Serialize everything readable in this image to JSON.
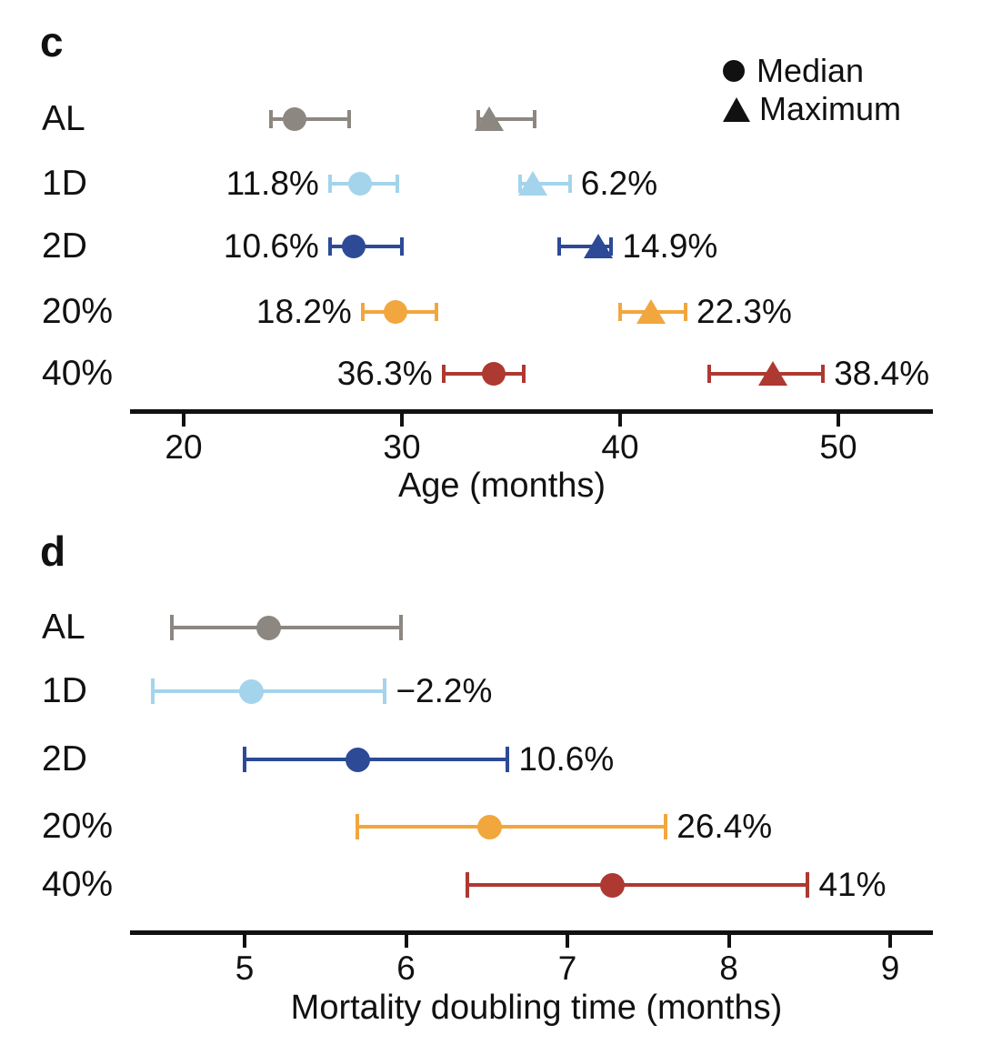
{
  "legend": {
    "items": [
      {
        "marker": "circle",
        "label": "Median"
      },
      {
        "marker": "triangle",
        "label": "Maximum"
      }
    ]
  },
  "chart_data": [
    {
      "type": "scatter",
      "panel_letter": "c",
      "xlabel": "Age (months)",
      "xlim": [
        17.5,
        54.6
      ],
      "xticks": [
        20,
        30,
        40,
        50
      ],
      "grid": false,
      "legend_position": "top-right",
      "groups": [
        "AL",
        "1D",
        "2D",
        "20%",
        "40%"
      ],
      "colors": {
        "AL": "#8C8781",
        "1D": "#A3D4EB",
        "2D": "#2C4A96",
        "20%": "#F1A73E",
        "40%": "#AE3931"
      },
      "series": [
        {
          "name": "Median",
          "marker": "circle",
          "points": [
            {
              "group": "AL",
              "x": 25.1,
              "lo": 24.0,
              "hi": 27.6,
              "label": "",
              "label_side": ""
            },
            {
              "group": "1D",
              "x": 28.1,
              "lo": 26.7,
              "hi": 29.8,
              "label": "11.8%",
              "label_side": "left"
            },
            {
              "group": "2D",
              "x": 27.8,
              "lo": 26.7,
              "hi": 30.0,
              "label": "10.6%",
              "label_side": "left"
            },
            {
              "group": "20%",
              "x": 29.7,
              "lo": 28.2,
              "hi": 31.6,
              "label": "18.2%",
              "label_side": "left"
            },
            {
              "group": "40%",
              "x": 34.2,
              "lo": 31.9,
              "hi": 35.6,
              "label": "36.3%",
              "label_side": "left"
            }
          ]
        },
        {
          "name": "Maximum",
          "marker": "triangle",
          "points": [
            {
              "group": "AL",
              "x": 34.0,
              "lo": 33.5,
              "hi": 36.1,
              "label": "",
              "label_side": ""
            },
            {
              "group": "1D",
              "x": 36.0,
              "lo": 35.4,
              "hi": 37.7,
              "label": "6.2%",
              "label_side": "right"
            },
            {
              "group": "2D",
              "x": 39.0,
              "lo": 37.2,
              "hi": 39.6,
              "label": "14.9%",
              "label_side": "right"
            },
            {
              "group": "20%",
              "x": 41.4,
              "lo": 40.0,
              "hi": 43.0,
              "label": "22.3%",
              "label_side": "right"
            },
            {
              "group": "40%",
              "x": 47.0,
              "lo": 44.1,
              "hi": 49.3,
              "label": "38.4%",
              "label_side": "right"
            }
          ]
        }
      ]
    },
    {
      "type": "scatter",
      "panel_letter": "d",
      "xlabel": "Mortality doubling time (months)",
      "xlim": [
        4.3,
        9.3
      ],
      "xticks": [
        5,
        6,
        7,
        8,
        9
      ],
      "grid": false,
      "legend_position": "none",
      "groups": [
        "AL",
        "1D",
        "2D",
        "20%",
        "40%"
      ],
      "colors": {
        "AL": "#8C8781",
        "1D": "#A3D4EB",
        "2D": "#2C4A96",
        "20%": "#F1A73E",
        "40%": "#AE3931"
      },
      "series": [
        {
          "name": "Median",
          "marker": "circle",
          "points": [
            {
              "group": "AL",
              "x": 5.15,
              "lo": 4.55,
              "hi": 5.97,
              "label": "",
              "label_side": ""
            },
            {
              "group": "1D",
              "x": 5.04,
              "lo": 4.43,
              "hi": 5.87,
              "label": "−2.2%",
              "label_side": "right"
            },
            {
              "group": "2D",
              "x": 5.7,
              "lo": 5.0,
              "hi": 6.63,
              "label": "10.6%",
              "label_side": "right"
            },
            {
              "group": "20%",
              "x": 6.52,
              "lo": 5.7,
              "hi": 7.61,
              "label": "26.4%",
              "label_side": "right"
            },
            {
              "group": "40%",
              "x": 7.28,
              "lo": 6.38,
              "hi": 8.49,
              "label": "41%",
              "label_side": "right"
            }
          ]
        }
      ]
    }
  ]
}
